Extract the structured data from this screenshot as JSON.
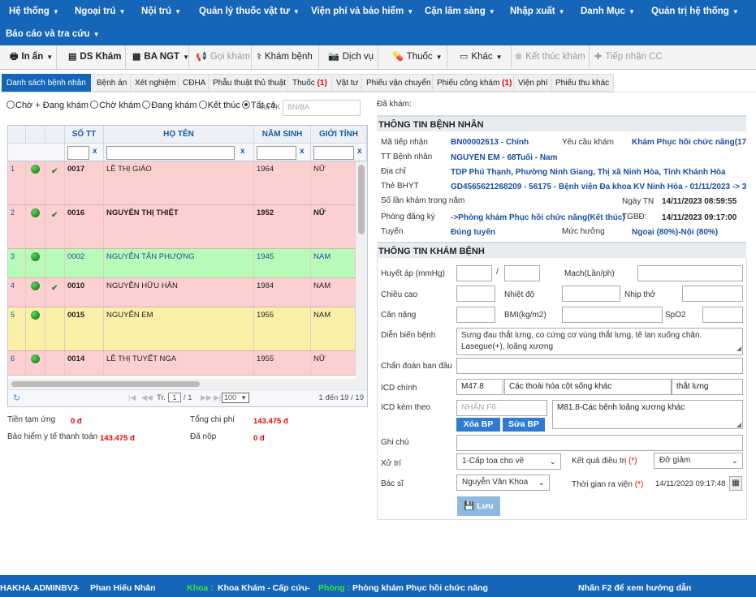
{
  "nav": {
    "row1": [
      "Hệ thống",
      "Ngoại trú",
      "Nội trú",
      "Quản lý thuốc vật tư",
      "Viện phí và bảo hiểm",
      "Cận lâm sàng",
      "Nhập xuất",
      "Danh Mục",
      "Quản trị hệ thống"
    ],
    "row2": [
      "Báo cáo và tra cứu"
    ]
  },
  "toolbar": {
    "print": "In ấn",
    "ds_kham": "DS Khám",
    "ba_ngt": "BA NGT",
    "call": "Gọi khám",
    "examine": "Khám bệnh",
    "service": "Dịch vụ",
    "medicine": "Thuốc",
    "other": "Khác",
    "end_exam": "Kết thúc khám",
    "receive_cc": "Tiếp nhận CC"
  },
  "tabs": [
    {
      "label": "Danh sách bệnh nhân",
      "count": ""
    },
    {
      "label": "Bệnh án",
      "count": ""
    },
    {
      "label": "Xét nghiệm",
      "count": ""
    },
    {
      "label": "CĐHA",
      "count": ""
    },
    {
      "label": "Phẫu thuật thủ thuật",
      "count": ""
    },
    {
      "label": "Thuốc",
      "count": "(1)"
    },
    {
      "label": "Vật tư",
      "count": ""
    },
    {
      "label": "Phiếu vận chuyển",
      "count": ""
    },
    {
      "label": "Phiếu công khám",
      "count": "(1)"
    },
    {
      "label": "Viện phí",
      "count": ""
    },
    {
      "label": "Phiếu thu khác",
      "count": ""
    }
  ],
  "filters": {
    "options": [
      "Chờ + Đang khám",
      "Chờ khám",
      "Đang khám",
      "Kết thúc",
      "Tất cả"
    ],
    "selected": "Tất cả",
    "ma_tk_label": "Mã TK",
    "ma_tk_placeholder": "BN/BA"
  },
  "grid": {
    "columns": [
      "SỐ TT",
      "HỌ TÊN",
      "NĂM SINH",
      "GIỚI TÍNH"
    ],
    "filter_clear": "x",
    "rows": [
      {
        "idx": "1",
        "stt": "0017",
        "name": "LÊ THỊ GIÁO",
        "year": "1964",
        "gender": "NỮ",
        "checked": true,
        "bg": "#fcd0d0",
        "color": "#222",
        "bold": false
      },
      {
        "idx": "2",
        "stt": "0016",
        "name": "NGUYỄN THỊ THIỆT",
        "year": "1952",
        "gender": "NỮ",
        "checked": true,
        "bg": "#fcd0d0",
        "color": "#222",
        "bold": true
      },
      {
        "idx": "3",
        "stt": "0002",
        "name": "NGUYỄN TẤN PHƯỢNG",
        "year": "1945",
        "gender": "NAM",
        "checked": false,
        "bg": "#b8fbb8",
        "color": "#1a4fa0",
        "bold": false
      },
      {
        "idx": "4",
        "stt": "0010",
        "name": "NGUYỄN HỮU HÂN",
        "year": "1984",
        "gender": "NAM",
        "checked": true,
        "bg": "#fcd0d0",
        "color": "#222",
        "bold": false
      },
      {
        "idx": "5",
        "stt": "0015",
        "name": "NGUYỄN EM",
        "year": "1955",
        "gender": "NAM",
        "checked": false,
        "bg": "#fbf0a8",
        "color": "#222",
        "bold": false
      },
      {
        "idx": "6",
        "stt": "0014",
        "name": "LÊ THỊ TUYẾT NGA",
        "year": "1955",
        "gender": "NỮ",
        "checked": false,
        "bg": "#fcd0d0",
        "color": "#222",
        "bold": false
      }
    ],
    "pager": {
      "page_label": "Tr.",
      "page": "1",
      "total_pages": "/ 1",
      "page_size": "100",
      "range": "1 đến 19 / 19"
    }
  },
  "summary": {
    "tien_tam_ung_label": "Tiền tạm ứng",
    "tien_tam_ung": "0 đ",
    "tong_chi_phi_label": "Tổng chi phí",
    "tong_chi_phi": "143.475 đ",
    "bhyt_label": "Bảo hiểm y tế thanh toán",
    "bhyt": "143.475 đ",
    "da_nop_label": "Đã nộp",
    "da_nop": "0 đ"
  },
  "patient": {
    "da_kham_label": "Đã khám:",
    "section_title": "THÔNG TIN BỆNH NHÂN",
    "ma_tiep_nhan_label": "Mã tiếp nhận",
    "ma_tiep_nhan": "BN00002613 - Chính",
    "yeu_cau_kham_label": "Yêu cầu khám",
    "yeu_cau_kham": "Khám Phục hồi chức năng(17.1",
    "tt_benh_nhan_label": "TT Bệnh nhân",
    "tt_benh_nhan": "NGUYỄN EM - 68Tuổi - Nam",
    "dia_chi_label": "Địa chỉ",
    "dia_chi": "TDP Phú Thạnh, Phường Ninh Giang, Thị xã Ninh Hòa, Tỉnh Khánh Hòa",
    "the_bhyt_label": "Thẻ BHYT",
    "the_bhyt": "GD4565621268209 - 56175 - Bệnh viện Đa khoa KV Ninh Hòa - 01/11/2023 -> 31/10.",
    "so_lan_kham_label": "Số lần khám trong năm",
    "ngay_tn_label": "Ngày TN",
    "ngay_tn": "14/11/2023 08:59:55",
    "phong_dang_ky_label": "Phòng đăng ký",
    "phong_dang_ky": "->Phòng khám Phục hồi chức năng(Kết thúc)",
    "tgbd_label": "TGBĐ:",
    "tgbd": "14/11/2023 09:17:00",
    "tuyen_label": "Tuyến",
    "tuyen": "Đúng tuyến",
    "muc_huong_label": "Mức hưởng",
    "muc_huong": "Ngoại (80%)-Nội (80%)"
  },
  "exam": {
    "section_title": "THÔNG TIN KHÁM BỆNH",
    "huyet_ap_label": "Huyết áp (mmHg)",
    "slash": "/",
    "mach_label": "Mạch(Lần/ph)",
    "chieu_cao_label": "Chiều cao",
    "nhiet_do_label": "Nhiệt độ",
    "nhip_tho_label": "Nhịp thở",
    "can_nang_label": "Cân nặng",
    "bmi_label": "BMI(kg/m2)",
    "spo2_label": "SpO2",
    "dien_bien_label": "Diễn biến bệnh",
    "dien_bien": "Sưng đau thắt lưng, co cứng cơ vùng thắt lưng, tê lan xuống chân. Lasegue(+), loãng xương",
    "chan_doan_label": "Chẩn đoán ban đầu",
    "icd_chinh_label": "ICD chính",
    "icd_code": "M47.8",
    "icd_name": "Các thoái hóa cột sống khác",
    "icd_note": "thắt lưng",
    "icd_kem_label": "ICD kèm theo",
    "icd_kem_placeholder": "NHẤN F6",
    "icd_kem_text": "M81.8-Các bệnh loãng xương khác",
    "xoa_bp": "Xóa BP",
    "sua_bp": "Sửa BP",
    "ghi_chu_label": "Ghi chú",
    "xu_tri_label": "Xử trí",
    "xu_tri": "1-Cấp toa cho về",
    "ket_qua_label": "Kết quả điều trị",
    "ket_qua": "Đỡ giảm",
    "bac_si_label": "Bác sĩ",
    "bac_si": "Nguyễn Văn Khoa",
    "thoi_gian_label": "Thời gian ra viện",
    "thoi_gian": "14/11/2023 09:17:48",
    "required": "(*)",
    "save": "Lưu"
  },
  "footer": {
    "user": "HAKHA.ADMINBV2",
    "sep": "-",
    "name": "Phan Hiếu Nhân",
    "khoa_label": "Khoa :",
    "khoa": "Khoa Khám - Cấp cứu",
    "phong_label": "Phòng :",
    "phong": "Phòng khám Phục hồi chức năng",
    "hint": "Nhấn F2 để xem hướng dẫn"
  }
}
